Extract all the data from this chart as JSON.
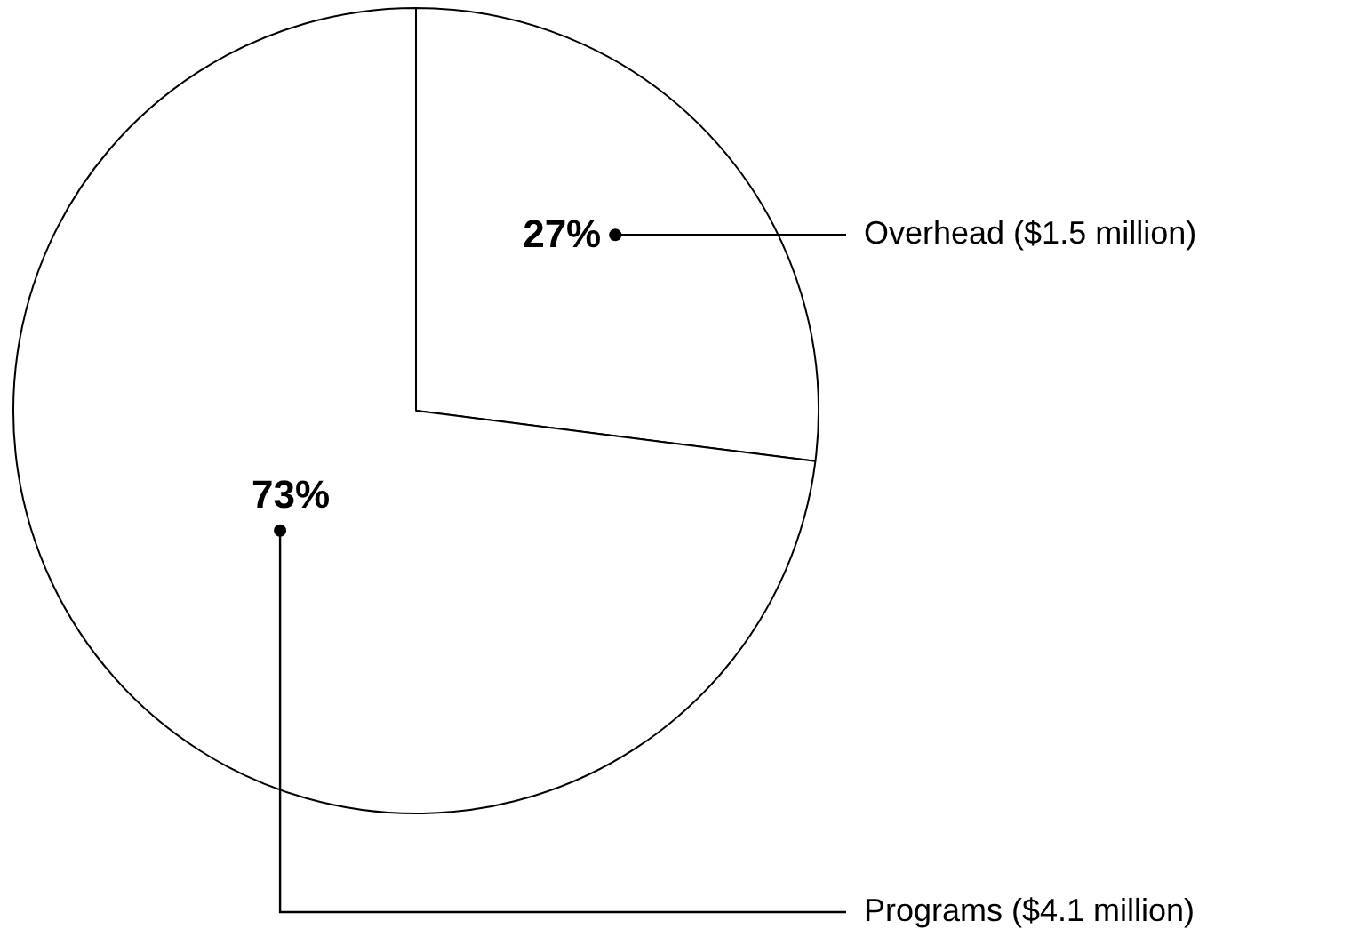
{
  "chart_data": {
    "type": "pie",
    "categories": [
      "Overhead ($1.5 million)",
      "Programs ($4.1 million)"
    ],
    "values": [
      27,
      73
    ],
    "colors": [
      "#ffffff",
      "#ffffff"
    ],
    "value_labels": [
      "27%",
      "73%"
    ],
    "legend": false
  }
}
